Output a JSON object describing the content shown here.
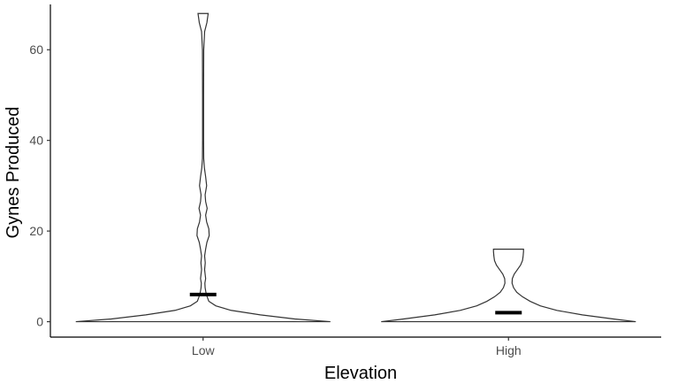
{
  "chart_data": {
    "type": "violin",
    "title": "",
    "xlabel": "Elevation",
    "ylabel": "Gynes Produced",
    "categories": [
      "Low",
      "High"
    ],
    "ylim": [
      -3.4,
      70
    ],
    "yticks": [
      0,
      20,
      40,
      60
    ],
    "grid": false,
    "legend": "none",
    "series": [
      {
        "category": "Low",
        "min": 0,
        "max": 68,
        "median": 6,
        "density": [
          [
            0,
            1.0
          ],
          [
            0.6,
            0.72
          ],
          [
            1.5,
            0.45
          ],
          [
            2.5,
            0.22
          ],
          [
            3.5,
            0.1
          ],
          [
            4.5,
            0.045
          ],
          [
            5.5,
            0.032
          ],
          [
            6.5,
            0.022
          ],
          [
            7.5,
            0.016
          ],
          [
            8.5,
            0.014
          ],
          [
            9.5,
            0.02
          ],
          [
            10.5,
            0.016
          ],
          [
            11.5,
            0.012
          ],
          [
            13,
            0.017
          ],
          [
            14.5,
            0.012
          ],
          [
            16,
            0.02
          ],
          [
            17.5,
            0.03
          ],
          [
            19,
            0.048
          ],
          [
            20.5,
            0.045
          ],
          [
            22,
            0.028
          ],
          [
            23.5,
            0.02
          ],
          [
            25,
            0.032
          ],
          [
            26.5,
            0.02
          ],
          [
            28,
            0.016
          ],
          [
            30,
            0.028
          ],
          [
            32,
            0.02
          ],
          [
            34,
            0.01
          ],
          [
            36,
            0.005
          ],
          [
            40,
            0.004
          ],
          [
            50,
            0.004
          ],
          [
            60,
            0.005
          ],
          [
            64,
            0.012
          ],
          [
            66,
            0.03
          ],
          [
            68,
            0.04
          ]
        ]
      },
      {
        "category": "High",
        "min": 0,
        "max": 16,
        "median": 2,
        "density": [
          [
            0,
            1.0
          ],
          [
            0.5,
            0.85
          ],
          [
            1.5,
            0.58
          ],
          [
            2.5,
            0.38
          ],
          [
            3.5,
            0.25
          ],
          [
            4.5,
            0.17
          ],
          [
            5.5,
            0.11
          ],
          [
            6.5,
            0.065
          ],
          [
            7.5,
            0.04
          ],
          [
            8.5,
            0.028
          ],
          [
            9.5,
            0.03
          ],
          [
            10.5,
            0.045
          ],
          [
            11.5,
            0.07
          ],
          [
            12.5,
            0.095
          ],
          [
            13.5,
            0.11
          ],
          [
            14.5,
            0.115
          ],
          [
            15.5,
            0.118
          ],
          [
            16,
            0.118
          ]
        ]
      }
    ]
  }
}
